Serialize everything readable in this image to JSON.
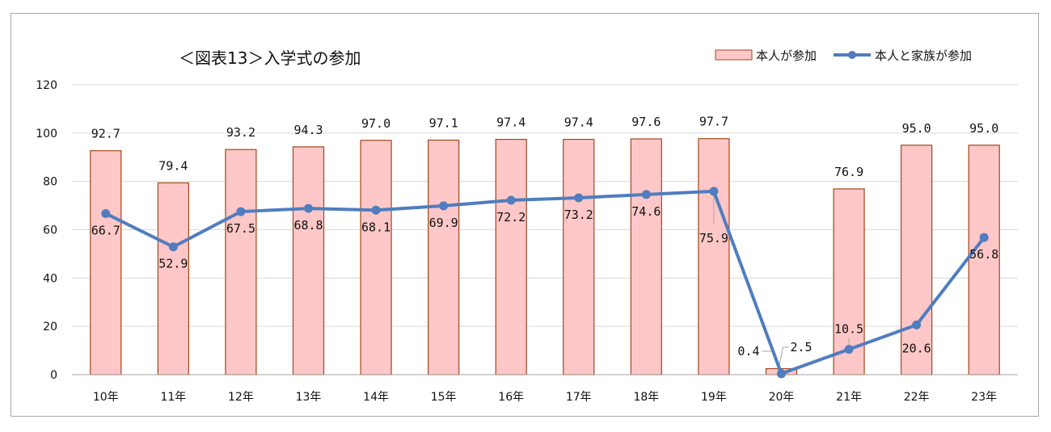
{
  "chart_data": {
    "type": "bar",
    "title": "＜図表13＞入学式の参加",
    "categories": [
      "10年",
      "11年",
      "12年",
      "13年",
      "14年",
      "15年",
      "16年",
      "17年",
      "18年",
      "19年",
      "20年",
      "21年",
      "22年",
      "23年"
    ],
    "ylim": [
      0,
      120
    ],
    "yticks": [
      "0",
      "20",
      "40",
      "60",
      "80",
      "100",
      "120"
    ],
    "grid": true,
    "legend_position": "top-right",
    "series": [
      {
        "name": "本人が参加",
        "kind": "bar",
        "color": "#ffc7c7",
        "edge_color": "#a0471d",
        "values": [
          92.7,
          79.4,
          93.2,
          94.3,
          97.0,
          97.1,
          97.4,
          97.4,
          97.6,
          97.7,
          2.5,
          76.9,
          95.0,
          95.0
        ],
        "labels": [
          "92.7",
          "79.4",
          "93.2",
          "94.3",
          "97.0",
          "97.1",
          "97.4",
          "97.4",
          "97.6",
          "97.7",
          "2.5",
          "76.9",
          "95.0",
          "95.0"
        ]
      },
      {
        "name": "本人と家族が参加",
        "kind": "line",
        "color": "#4f7dbf",
        "values": [
          66.7,
          52.9,
          67.5,
          68.8,
          68.1,
          69.9,
          72.2,
          73.2,
          74.6,
          75.9,
          0.4,
          10.5,
          20.6,
          56.8
        ],
        "labels": [
          "66.7",
          "52.9",
          "67.5",
          "68.8",
          "68.1",
          "69.9",
          "72.2",
          "73.2",
          "74.6",
          "75.9",
          "0.4",
          "10.5",
          "20.6",
          "56.8"
        ]
      }
    ]
  }
}
